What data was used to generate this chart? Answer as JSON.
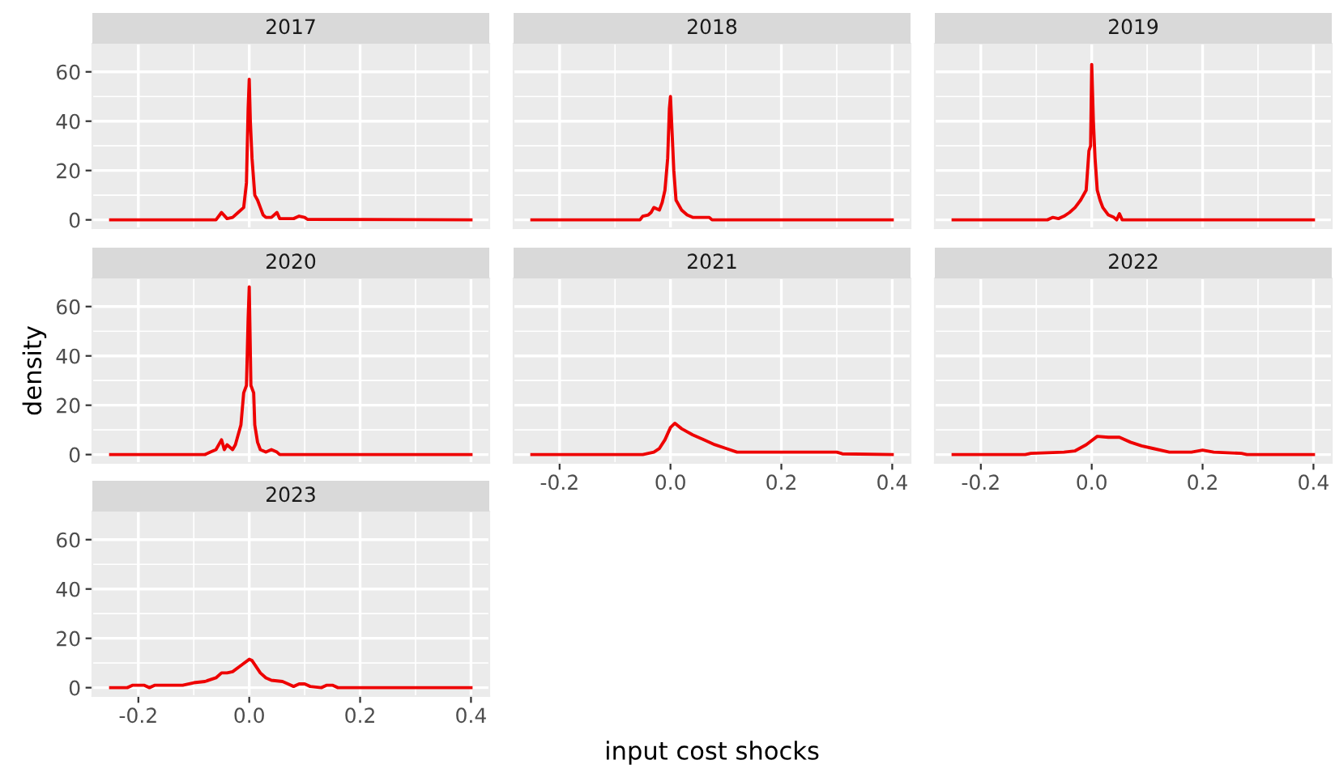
{
  "chart_data": [
    {
      "type": "line",
      "title": "2017",
      "tick_labels": "y",
      "grid": true,
      "color": "#ee0000",
      "xlim": [
        -0.283,
        0.433
      ],
      "ylim": [
        -3.4,
        71.4
      ],
      "xticks": [
        -0.2,
        0,
        0.2,
        0.4
      ],
      "yticks": [
        0,
        20,
        40,
        60
      ],
      "x": [
        -0.25,
        -0.06,
        -0.05,
        -0.04,
        -0.03,
        -0.02,
        -0.01,
        -0.005,
        -0.002,
        0,
        0.002,
        0.005,
        0.01,
        0.015,
        0.02,
        0.025,
        0.03,
        0.04,
        0.05,
        0.055,
        0.08,
        0.09,
        0.1,
        0.105,
        0.4
      ],
      "values": [
        0,
        0,
        3,
        0.5,
        1,
        3,
        5,
        15,
        45,
        57,
        40,
        25,
        10,
        8,
        5,
        2,
        1,
        1,
        3,
        0.5,
        0.5,
        1.5,
        1,
        0.2,
        0
      ]
    },
    {
      "type": "line",
      "title": "2018",
      "tick_labels": false,
      "grid": true,
      "color": "#ee0000",
      "xlim": [
        -0.283,
        0.433
      ],
      "ylim": [
        -3.4,
        71.4
      ],
      "xticks": [
        -0.2,
        0,
        0.2,
        0.4
      ],
      "yticks": [
        0,
        20,
        40,
        60
      ],
      "x": [
        -0.25,
        -0.055,
        -0.05,
        -0.04,
        -0.035,
        -0.03,
        -0.02,
        -0.015,
        -0.01,
        -0.005,
        -0.002,
        0,
        0.003,
        0.006,
        0.01,
        0.02,
        0.03,
        0.04,
        0.05,
        0.07,
        0.075,
        0.4
      ],
      "values": [
        0,
        0,
        1.5,
        2,
        3,
        5,
        4,
        7,
        12,
        25,
        45,
        50,
        35,
        20,
        8,
        4,
        2,
        1,
        1,
        1,
        0,
        0
      ]
    },
    {
      "type": "line",
      "title": "2019",
      "tick_labels": false,
      "grid": true,
      "color": "#ee0000",
      "xlim": [
        -0.283,
        0.433
      ],
      "ylim": [
        -3.4,
        71.4
      ],
      "xticks": [
        -0.2,
        0,
        0.2,
        0.4
      ],
      "yticks": [
        0,
        20,
        40,
        60
      ],
      "x": [
        -0.25,
        -0.08,
        -0.07,
        -0.06,
        -0.05,
        -0.04,
        -0.03,
        -0.02,
        -0.01,
        -0.005,
        -0.002,
        0,
        0.003,
        0.006,
        0.01,
        0.015,
        0.02,
        0.03,
        0.04,
        0.045,
        0.05,
        0.055,
        0.4
      ],
      "values": [
        0,
        0,
        1,
        0.5,
        1.5,
        3,
        5,
        8,
        12,
        28,
        30,
        63,
        40,
        25,
        12,
        8,
        5,
        2,
        1,
        0,
        2.5,
        0,
        0
      ]
    },
    {
      "type": "line",
      "title": "2020",
      "ylabel": "density",
      "tick_labels": "y",
      "grid": true,
      "color": "#ee0000",
      "xlim": [
        -0.283,
        0.433
      ],
      "ylim": [
        -3.4,
        71.4
      ],
      "xticks": [
        -0.2,
        0,
        0.2,
        0.4
      ],
      "yticks": [
        0,
        20,
        40,
        60
      ],
      "x": [
        -0.25,
        -0.08,
        -0.07,
        -0.06,
        -0.05,
        -0.045,
        -0.04,
        -0.03,
        -0.025,
        -0.02,
        -0.015,
        -0.01,
        -0.005,
        -0.002,
        0,
        0.003,
        0.008,
        0.01,
        0.015,
        0.02,
        0.03,
        0.04,
        0.05,
        0.055,
        0.4
      ],
      "values": [
        0,
        0,
        1,
        2,
        6,
        2,
        4,
        2,
        4,
        8,
        12,
        25,
        28,
        55,
        68,
        28,
        25,
        12,
        5,
        2,
        1,
        2,
        1,
        0,
        0
      ]
    },
    {
      "type": "line",
      "title": "2021",
      "tick_labels": "x",
      "grid": true,
      "color": "#ee0000",
      "xlim": [
        -0.283,
        0.433
      ],
      "ylim": [
        -3.4,
        71.4
      ],
      "xticks": [
        {
          "value": -0.2,
          "label": "-0.2"
        },
        {
          "value": 0,
          "label": "0.0"
        },
        {
          "value": 0.2,
          "label": "0.2"
        },
        {
          "value": 0.4,
          "label": "0.4"
        }
      ],
      "yticks": [
        0,
        20,
        40,
        60
      ],
      "x": [
        -0.25,
        -0.05,
        -0.04,
        -0.03,
        -0.02,
        -0.01,
        0,
        0.008,
        0.02,
        0.04,
        0.06,
        0.08,
        0.1,
        0.12,
        0.2,
        0.3,
        0.31,
        0.4
      ],
      "values": [
        0,
        0,
        0.5,
        1,
        2.5,
        6,
        11,
        12.7,
        10.5,
        8,
        6,
        4,
        2.5,
        1,
        1,
        1,
        0.3,
        0
      ]
    },
    {
      "type": "line",
      "title": "2022",
      "tick_labels": "x",
      "grid": true,
      "color": "#ee0000",
      "xlim": [
        -0.283,
        0.433
      ],
      "ylim": [
        -3.4,
        71.4
      ],
      "xticks": [
        {
          "value": -0.2,
          "label": "-0.2"
        },
        {
          "value": 0,
          "label": "0.0"
        },
        {
          "value": 0.2,
          "label": "0.2"
        },
        {
          "value": 0.4,
          "label": "0.4"
        }
      ],
      "yticks": [
        0,
        20,
        40,
        60
      ],
      "x": [
        -0.25,
        -0.12,
        -0.11,
        -0.05,
        -0.03,
        -0.01,
        0.01,
        0.03,
        0.05,
        0.07,
        0.09,
        0.11,
        0.14,
        0.18,
        0.2,
        0.22,
        0.27,
        0.28,
        0.4
      ],
      "values": [
        0,
        0,
        0.5,
        1,
        1.5,
        4,
        7.4,
        7,
        7,
        5,
        3.5,
        2.5,
        1,
        1,
        1.8,
        1,
        0.5,
        0,
        0
      ]
    },
    {
      "type": "line",
      "title": "2023",
      "xlabel": "input cost shocks",
      "grid": true,
      "color": "#ee0000",
      "xlim": [
        -0.283,
        0.433
      ],
      "ylim": [
        -3.4,
        71.4
      ],
      "xticks": [
        {
          "value": -0.2,
          "label": "-0.2"
        },
        {
          "value": 0,
          "label": "0.0"
        },
        {
          "value": 0.2,
          "label": "0.2"
        },
        {
          "value": 0.4,
          "label": "0.4"
        }
      ],
      "yticks": [
        0,
        20,
        40,
        60
      ],
      "x": [
        -0.25,
        -0.22,
        -0.21,
        -0.19,
        -0.18,
        -0.17,
        -0.12,
        -0.1,
        -0.08,
        -0.06,
        -0.05,
        -0.04,
        -0.03,
        -0.015,
        0,
        0.005,
        0.02,
        0.03,
        0.04,
        0.06,
        0.07,
        0.08,
        0.09,
        0.1,
        0.11,
        0.13,
        0.14,
        0.15,
        0.16,
        0.4
      ],
      "values": [
        0,
        0,
        1,
        1,
        0,
        1,
        1,
        2,
        2.5,
        4,
        6,
        6,
        6.5,
        9,
        11.5,
        11,
        6,
        4,
        3,
        2.5,
        1.5,
        0.5,
        1.5,
        1.5,
        0.5,
        0,
        1,
        1,
        0,
        0
      ]
    }
  ]
}
